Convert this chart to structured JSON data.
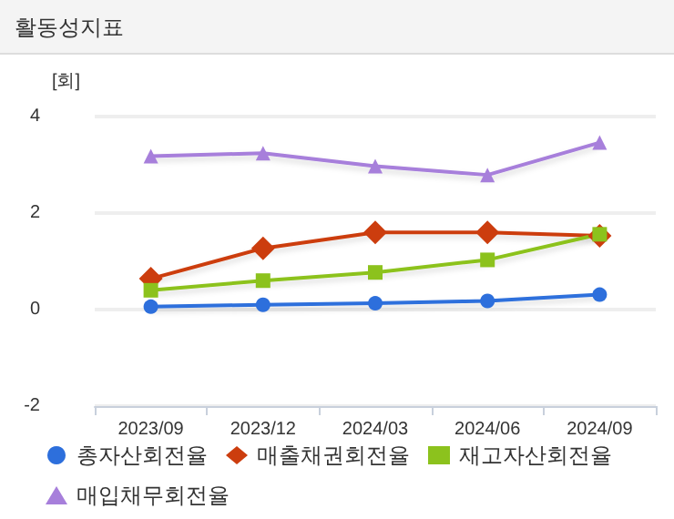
{
  "chart_data": {
    "type": "line",
    "title": "활동성지표",
    "ylabel": "[회]",
    "categories": [
      "2023/09",
      "2023/12",
      "2024/03",
      "2024/06",
      "2024/09"
    ],
    "series": [
      {
        "name": "총자산회전율",
        "color": "#2d6fdc",
        "marker": "circle",
        "values": [
          0.06,
          0.1,
          0.13,
          0.18,
          0.31
        ]
      },
      {
        "name": "매출채권회전율",
        "color": "#cc3d0e",
        "marker": "diamond",
        "values": [
          0.64,
          1.27,
          1.6,
          1.6,
          1.53
        ]
      },
      {
        "name": "재고자산회전율",
        "color": "#8cc21d",
        "marker": "square",
        "values": [
          0.4,
          0.6,
          0.77,
          1.03,
          1.56
        ]
      },
      {
        "name": "매입채무회전율",
        "color": "#a77fdb",
        "marker": "triangle",
        "values": [
          3.18,
          3.24,
          2.97,
          2.79,
          3.46
        ]
      }
    ],
    "ylim": [
      -2,
      4
    ],
    "yticks": [
      -2,
      0,
      2,
      4
    ],
    "grid": "y",
    "legend": "bottom"
  }
}
